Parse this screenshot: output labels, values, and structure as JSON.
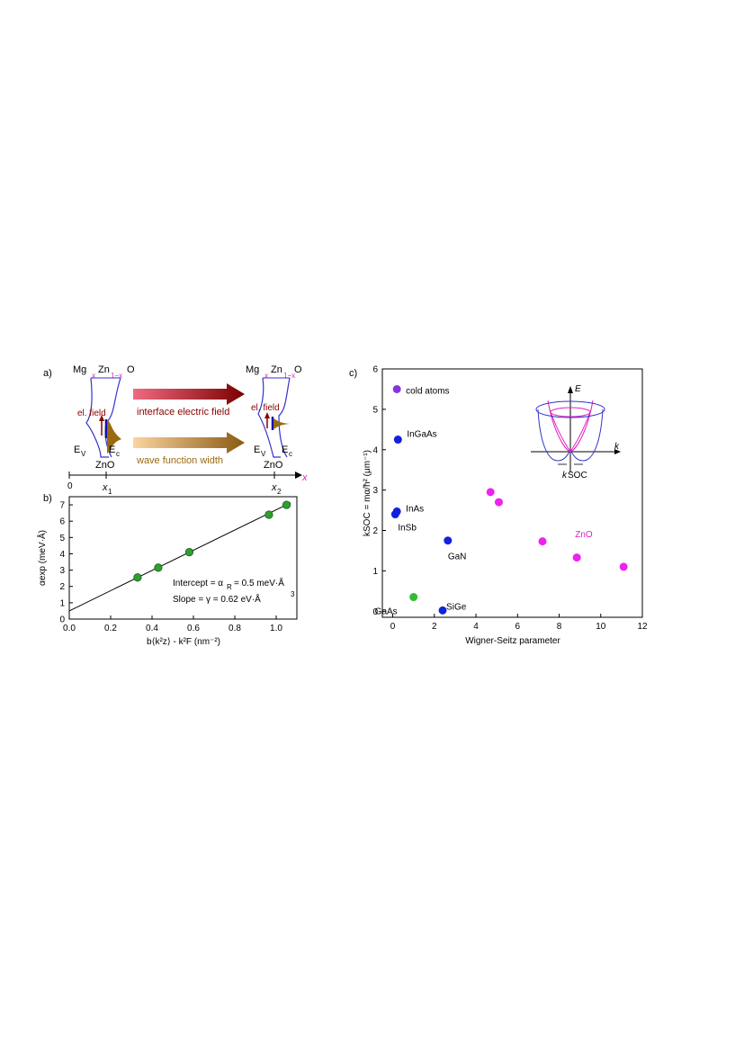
{
  "panel_a": {
    "label": "a)",
    "material_top": {
      "mg": "Mg",
      "x_sub": "x",
      "zn": "Zn",
      "one_minus_x": "1−x",
      "o": "O"
    },
    "el_field": "el. field",
    "ev": "E",
    "ev_sub": "V",
    "ec": "E",
    "ec_sub": "c",
    "zno": "ZnO",
    "arrow1_label": "interface electric field",
    "arrow2_label": "wave function width",
    "axis_origin": "0",
    "x1": "x",
    "x1_sub": "1",
    "x2": "x",
    "x2_sub": "2",
    "axis_var": "x",
    "colors": {
      "band": "#3333cc",
      "magenta": "#e020c0",
      "field_arrow": "#8b0000",
      "wave": "#9a6a10"
    }
  },
  "chart_data": [
    {
      "type": "scatter",
      "panel_label": "b)",
      "xlabel": "b⟨k²z⟩ - k²F (nm⁻²)",
      "ylabel": "αexp (meV·Å)",
      "xlim": [
        0.0,
        1.1
      ],
      "ylim": [
        0,
        7.5
      ],
      "xticks": [
        "0.0",
        "0.2",
        "0.4",
        "0.6",
        "0.8",
        "1.0"
      ],
      "yticks": [
        "0",
        "1",
        "2",
        "3",
        "4",
        "5",
        "6",
        "7"
      ],
      "points": [
        {
          "x": 0.33,
          "y": 2.55
        },
        {
          "x": 0.43,
          "y": 3.15
        },
        {
          "x": 0.58,
          "y": 4.1
        },
        {
          "x": 0.965,
          "y": 6.4
        },
        {
          "x": 1.05,
          "y": 7.0
        }
      ],
      "fit_line": {
        "intercept": 0.5,
        "slope": 6.2
      },
      "annotations": {
        "intercept_text": "Intercept = α",
        "intercept_sub": "R",
        "intercept_value": "= 0.5  meV·Å",
        "slope_text": "Slope     = γ = 0.62  eV·Å",
        "slope_sup": "3"
      },
      "marker_color": "#2ea02e"
    },
    {
      "type": "scatter",
      "panel_label": "c)",
      "xlabel": "Wigner-Seitz parameter",
      "ylabel": "kSOC = mα/ħ² (μm⁻¹)",
      "xlim": [
        -0.5,
        12
      ],
      "ylim": [
        -0.15,
        6
      ],
      "xticks": [
        "0",
        "2",
        "4",
        "6",
        "8",
        "10",
        "12"
      ],
      "yticks": [
        "0",
        "1",
        "2",
        "3",
        "4",
        "5",
        "6"
      ],
      "points": [
        {
          "x": 0.2,
          "y": 5.5,
          "color": "#8833dd",
          "label": "cold atoms"
        },
        {
          "x": 0.25,
          "y": 4.25,
          "color": "#1122dd",
          "label": "InGaAs"
        },
        {
          "x": 0.2,
          "y": 2.47,
          "color": "#1122dd",
          "label": "InAs"
        },
        {
          "x": 0.12,
          "y": 2.4,
          "color": "#1122dd",
          "label": "InSb"
        },
        {
          "x": 2.65,
          "y": 1.75,
          "color": "#1122dd",
          "label": "GaN"
        },
        {
          "x": 1.0,
          "y": 0.35,
          "color": "#33bb33",
          "label": "GaAs"
        },
        {
          "x": 2.4,
          "y": 0.02,
          "color": "#1122dd",
          "label": "SiGe"
        },
        {
          "x": 4.7,
          "y": 2.95,
          "color": "#ee22ee",
          "label": ""
        },
        {
          "x": 5.1,
          "y": 2.7,
          "color": "#ee22ee",
          "label": ""
        },
        {
          "x": 7.2,
          "y": 1.73,
          "color": "#ee22ee",
          "label": ""
        },
        {
          "x": 8.85,
          "y": 1.33,
          "color": "#ee22ee",
          "label": ""
        },
        {
          "x": 11.1,
          "y": 1.1,
          "color": "#ee22ee",
          "label": "ZnO"
        }
      ],
      "inset": {
        "e_label": "E",
        "k_label": "k",
        "ksoc_label": "k",
        "ksoc_sub": "SOC"
      }
    }
  ]
}
